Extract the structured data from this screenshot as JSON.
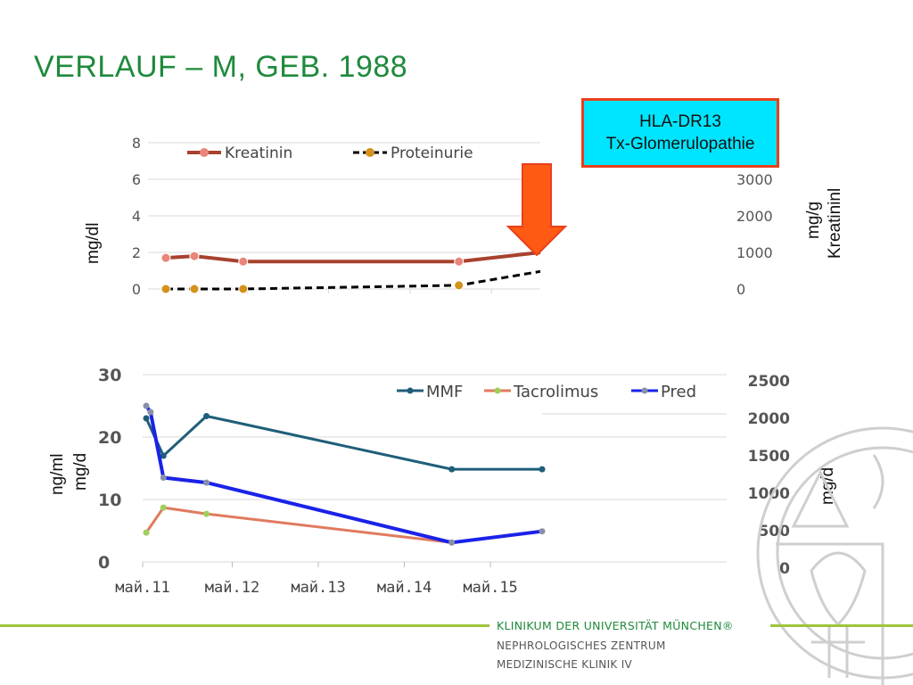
{
  "slide": {
    "title": "VERLAUF – M, GEB. 1988",
    "callout_line1": "HLA-DR13",
    "callout_line2": "Tx-Glomerulopathie"
  },
  "footer": {
    "institution": "KLINIKUM DER UNIVERSITÄT MÜNCHEN®",
    "dept1": "NEPHROLOGISCHES ZENTRUM",
    "dept2": "MEDIZINISCHE KLINIK IV"
  },
  "colors": {
    "title": "#1f8a3c",
    "kreatinin": "#a8412e",
    "kreatinin_marker": "#e9857a",
    "proteinurie": "#000000",
    "proteinurie_marker": "#d4921a",
    "mmf": "#1f5e7a",
    "tacrolimus": "#e07a5f",
    "tacrolimus_marker": "#9ecf5a",
    "pred": "#1a22e8",
    "pred_marker": "#8a8fa8",
    "arrow": "#ff5a14",
    "callout_bg": "#00e5ff",
    "callout_border": "#e8401c",
    "footer_line": "#9ec43c"
  },
  "chart_data": [
    {
      "type": "line",
      "ylabel_left": "mg/dl",
      "ylabel_right_line1": "mg/g",
      "ylabel_right_line2": "Kreatininl",
      "ylim_left": [
        0,
        8
      ],
      "yticks_left": [
        "0",
        "2",
        "4",
        "6",
        "8"
      ],
      "ylim_right": [
        0,
        4000
      ],
      "yticks_right": [
        "0",
        "1000",
        "2000",
        "3000"
      ],
      "legend": "top",
      "grid": true,
      "series": [
        {
          "name": "Kreatinin",
          "axis": "left",
          "style": "solid",
          "points": [
            {
              "t": 2011.0,
              "y": 1.7
            },
            {
              "t": 2011.35,
              "y": 1.8
            },
            {
              "t": 2011.95,
              "y": 1.5
            },
            {
              "t": 2014.6,
              "y": 1.5
            },
            {
              "t": 2015.6,
              "y": 2.0
            }
          ]
        },
        {
          "name": "Proteinurie",
          "axis": "right",
          "style": "dashed",
          "points": [
            {
              "t": 2011.0,
              "y": 0
            },
            {
              "t": 2011.35,
              "y": 0
            },
            {
              "t": 2011.95,
              "y": 0
            },
            {
              "t": 2014.6,
              "y": 100
            },
            {
              "t": 2015.6,
              "y": 480
            }
          ]
        }
      ],
      "annotations": [
        "arrow pointing down at end of Kreatinin series"
      ]
    },
    {
      "type": "line",
      "ylabel_left_line1": "ng/ml",
      "ylabel_left_line2": "mg/d",
      "ylabel_right": "mg/d",
      "ylim_left": [
        0,
        30
      ],
      "yticks_left": [
        "0",
        "10",
        "20",
        "30"
      ],
      "ylim_right": [
        0,
        2500
      ],
      "yticks_right": [
        "0",
        "500",
        "1000",
        "1500",
        "2000",
        "2500"
      ],
      "xticks": [
        "май.11",
        "май.12",
        "май.13",
        "май.14",
        "май.15"
      ],
      "legend": "top-right",
      "grid": true,
      "series": [
        {
          "name": "MMF",
          "axis": "right",
          "points": [
            {
              "t": 2011.0,
              "y": 2000
            },
            {
              "t": 2011.2,
              "y": 1500
            },
            {
              "t": 2011.7,
              "y": 2030
            },
            {
              "t": 2014.55,
              "y": 1320
            },
            {
              "t": 2015.6,
              "y": 1320
            }
          ]
        },
        {
          "name": "Tacrolimus",
          "axis": "left",
          "points": [
            {
              "t": 2011.0,
              "y": 4.7
            },
            {
              "t": 2011.2,
              "y": 8.7
            },
            {
              "t": 2011.7,
              "y": 7.7
            },
            {
              "t": 2014.55,
              "y": 3.1
            }
          ]
        },
        {
          "name": "Pred",
          "axis": "left",
          "points": [
            {
              "t": 2011.0,
              "y": 25.0
            },
            {
              "t": 2011.05,
              "y": 24.0
            },
            {
              "t": 2011.2,
              "y": 13.5
            },
            {
              "t": 2011.7,
              "y": 12.7
            },
            {
              "t": 2014.55,
              "y": 3.1
            },
            {
              "t": 2015.6,
              "y": 4.9
            }
          ]
        }
      ]
    }
  ]
}
